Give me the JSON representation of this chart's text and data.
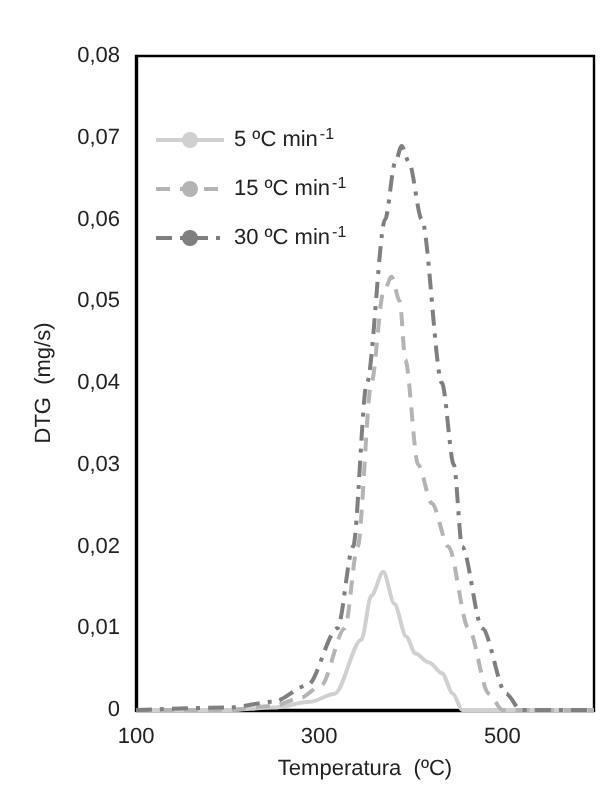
{
  "chart_data": {
    "type": "line",
    "xlabel": "Temperatura  (ºC)",
    "ylabel": "DTG  (mg/s)",
    "xlim": [
      100,
      600
    ],
    "xticks": [
      100,
      300,
      500
    ],
    "ylim": [
      0,
      0.08
    ],
    "yticks": [
      {
        "value": 0,
        "label": "0"
      },
      {
        "value": 0.01,
        "label": "0,01"
      },
      {
        "value": 0.02,
        "label": "0,02"
      },
      {
        "value": 0.03,
        "label": "0,03"
      },
      {
        "value": 0.04,
        "label": "0,04"
      },
      {
        "value": 0.05,
        "label": "0,05"
      },
      {
        "value": 0.06,
        "label": "0,06"
      },
      {
        "value": 0.07,
        "label": "0,07"
      },
      {
        "value": 0.08,
        "label": "0,08"
      }
    ],
    "grid": false,
    "legend": "top left",
    "marker": "none",
    "series": [
      {
        "name": "5 ºC min$^{-1}$",
        "color": "#d0d0d0",
        "line_style": "solid",
        "x": [
          100,
          200,
          250,
          290,
          317,
          346,
          357,
          370,
          382,
          395,
          405,
          420,
          434,
          446,
          456,
          600
        ],
        "values": [
          0,
          0,
          0.0003,
          0.001,
          0.002,
          0.0086,
          0.014,
          0.0169,
          0.013,
          0.009,
          0.0069,
          0.0058,
          0.0045,
          0.002,
          0,
          0
        ]
      },
      {
        "name": "15 ºC min$^{-1}$",
        "color": "#b4b4b4",
        "line_style": "dashed",
        "x": [
          100,
          200,
          250,
          280,
          302,
          328,
          342,
          357,
          370,
          379,
          388,
          394,
          408,
          423,
          441,
          463,
          485,
          500,
          600
        ],
        "values": [
          0,
          0,
          0.0005,
          0.0015,
          0.003,
          0.01,
          0.02,
          0.04,
          0.051,
          0.053,
          0.05,
          0.0428,
          0.03,
          0.0253,
          0.02,
          0.01,
          0.002,
          0,
          0
        ]
      },
      {
        "name": "30 ºC min$^{-1}$",
        "color": "#7f7f7f",
        "line_style": "dashdot",
        "x": [
          100,
          200,
          250,
          287,
          320,
          337,
          352,
          372,
          383,
          390,
          398,
          412,
          434,
          447,
          456,
          478,
          504,
          520,
          600
        ],
        "values": [
          0,
          0.0003,
          0.001,
          0.003,
          0.01,
          0.02,
          0.04,
          0.06,
          0.067,
          0.069,
          0.067,
          0.06,
          0.04,
          0.03,
          0.02,
          0.01,
          0.002,
          0,
          0
        ]
      }
    ]
  }
}
